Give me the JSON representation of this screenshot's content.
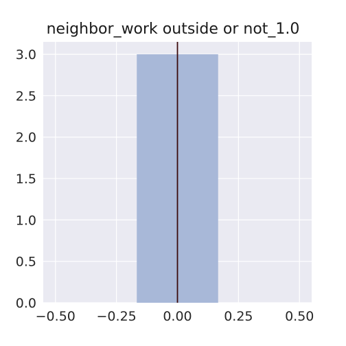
{
  "chart_data": {
    "type": "bar",
    "title": "neighbor_work outside or not_1.0",
    "xlabel": "",
    "ylabel": "",
    "bars": [
      {
        "x0": -0.1667,
        "x1": 0.1667,
        "value": 3.0
      }
    ],
    "vline": {
      "x": 0.0
    },
    "xlim": [
      -0.55,
      0.55
    ],
    "ylim": [
      0.0,
      3.15
    ],
    "xticks": [
      -0.5,
      -0.25,
      0.0,
      0.25,
      0.5
    ],
    "xtick_labels": [
      "−0.50",
      "−0.25",
      "0.00",
      "0.25",
      "0.50"
    ],
    "yticks": [
      0.0,
      0.5,
      1.0,
      1.5,
      2.0,
      2.5,
      3.0
    ],
    "ytick_labels": [
      "0.0",
      "0.5",
      "1.0",
      "1.5",
      "2.0",
      "2.5",
      "3.0"
    ],
    "grid": true,
    "colors": {
      "background": "#eaeaf2",
      "grid": "#ffffff",
      "bar": "#a8b8d8",
      "vline": "#3b0a0a"
    }
  }
}
